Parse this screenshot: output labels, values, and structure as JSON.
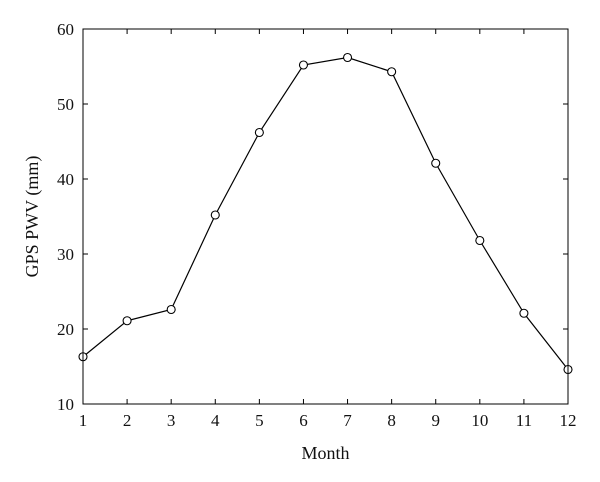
{
  "chart_data": {
    "type": "line",
    "title": "",
    "xlabel": "Month",
    "ylabel": "GPS PWV (mm)",
    "x": [
      1,
      2,
      3,
      4,
      5,
      6,
      7,
      8,
      9,
      10,
      11,
      12
    ],
    "series": [
      {
        "values": [
          16.3,
          21.1,
          22.6,
          35.2,
          46.2,
          55.2,
          56.2,
          54.3,
          42.1,
          31.8,
          22.1,
          14.6
        ],
        "color": "#000000",
        "marker": "circle-open"
      }
    ],
    "xlim": [
      1,
      12
    ],
    "ylim": [
      10,
      60
    ],
    "xticks": [
      "1",
      "2",
      "3",
      "4",
      "5",
      "6",
      "7",
      "8",
      "9",
      "10",
      "11",
      "12"
    ],
    "yticks": [
      "10",
      "20",
      "30",
      "40",
      "50",
      "60"
    ],
    "grid": false,
    "legend": "none"
  }
}
